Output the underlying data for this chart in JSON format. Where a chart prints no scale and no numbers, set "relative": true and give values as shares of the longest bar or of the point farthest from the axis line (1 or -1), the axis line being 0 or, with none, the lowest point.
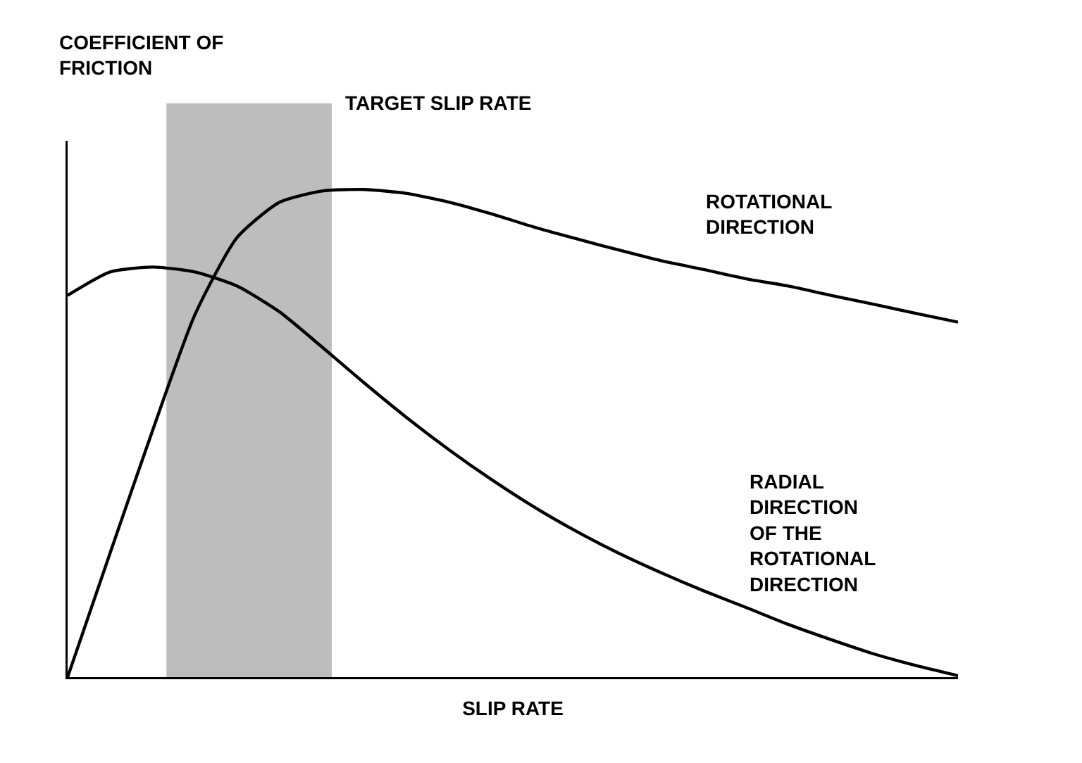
{
  "chart_data": {
    "type": "line",
    "relative": true,
    "annotations": [
      "COEFFICIENT OF\nFRICTION",
      "TARGET SLIP RATE"
    ],
    "xlabel": "SLIP RATE",
    "categories": [
      null,
      null,
      null,
      null,
      null,
      null,
      null,
      null,
      null,
      null,
      null,
      null,
      null,
      null,
      null,
      null,
      null,
      null,
      null,
      null,
      null,
      null
    ],
    "series": [
      {
        "name": "ROTATIONAL\nDIRECTION",
        "color": "#000000",
        "values": [
          0,
          0.254,
          0.505,
          0.743,
          0.902,
          0.974,
          0.997,
          1,
          0.992,
          0.974,
          0.95,
          0.923,
          0.899,
          0.876,
          0.854,
          0.836,
          0.817,
          0.802,
          0.783,
          0.765,
          0.746,
          0.728
        ]
      },
      {
        "name": "RADIAL\nDIRECTION\nOF THE\nROTATIONAL\nDIRECTION",
        "color": "#000000",
        "values": [
          0.783,
          0.831,
          0.841,
          0.831,
          0.802,
          0.749,
          0.677,
          0.603,
          0.532,
          0.466,
          0.405,
          0.349,
          0.299,
          0.254,
          0.214,
          0.177,
          0.143,
          0.108,
          0.077,
          0.048,
          0.024,
          0.003
        ]
      }
    ],
    "legend": false,
    "grid": false
  }
}
